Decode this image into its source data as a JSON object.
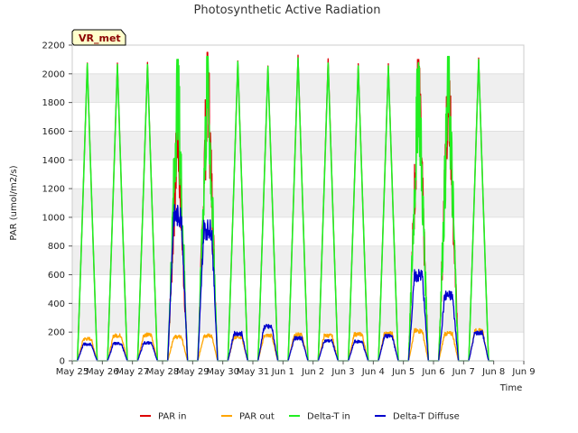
{
  "chart_data": {
    "type": "line",
    "title": "Photosynthetic Active Radiation",
    "xlabel": "Time",
    "ylabel": "PAR (umol/m2/s)",
    "ylim": [
      0,
      2200
    ],
    "xlim": [
      0,
      15
    ],
    "yticks": [
      0,
      200,
      400,
      600,
      800,
      1000,
      1200,
      1400,
      1600,
      1800,
      2000,
      2200
    ],
    "xticks": [
      "May 25",
      "May 26",
      "May 27",
      "May 28",
      "May 29",
      "May 30",
      "May 31",
      "Jun 1",
      "Jun 2",
      "Jun 3",
      "Jun 4",
      "Jun 5",
      "Jun 6",
      "Jun 7",
      "Jun 8",
      "Jun 9"
    ],
    "grid": "horizontal bands",
    "legend_position": "bottom",
    "site_label": "VR_met",
    "daily_peaks": {
      "PAR in": [
        2075,
        2075,
        2080,
        1730,
        2150,
        2090,
        2055,
        2130,
        2105,
        2070,
        2070,
        2100,
        2135,
        2110
      ],
      "PAR out": [
        165,
        190,
        195,
        180,
        190,
        180,
        190,
        195,
        190,
        200,
        205,
        225,
        205,
        225
      ],
      "Delta-T in": [
        2070,
        2065,
        2065,
        2100,
        2120,
        2085,
        2050,
        2110,
        2075,
        2055,
        2055,
        2110,
        2120,
        2100
      ],
      "Delta-T Diffuse": [
        125,
        130,
        135,
        1090,
        990,
        205,
        255,
        170,
        150,
        145,
        185,
        640,
        490,
        210
      ]
    },
    "series": [
      {
        "name": "PAR in",
        "color": "#dd0000"
      },
      {
        "name": "PAR out",
        "color": "#ffa500"
      },
      {
        "name": "Delta-T in",
        "color": "#22ee22"
      },
      {
        "name": "Delta-T Diffuse",
        "color": "#0000cc"
      }
    ]
  }
}
